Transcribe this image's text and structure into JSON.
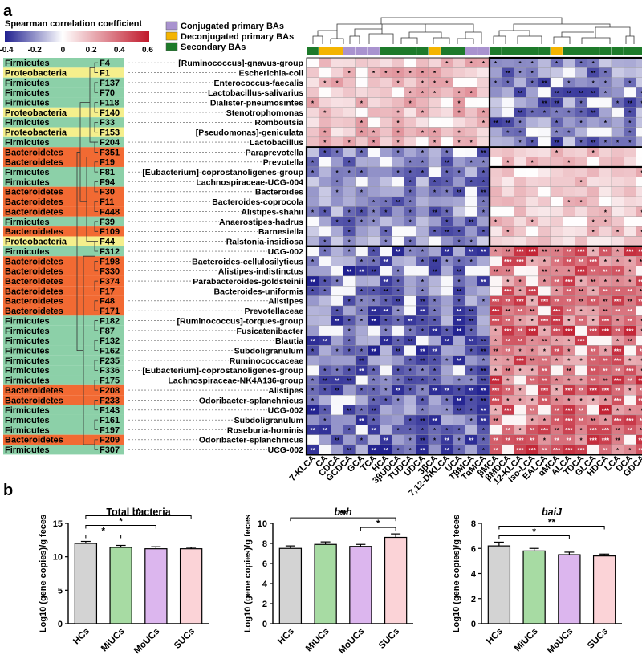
{
  "panel_a": {
    "label": "a",
    "colorbar": {
      "title": "Spearman correlation coefficient",
      "ticks": [
        "-0.4",
        "-0.2",
        "0",
        "0.2",
        "0.4",
        "0.6"
      ],
      "range": [
        -0.4,
        0.6
      ],
      "low_color": "#1f1f8f",
      "mid_color": "#ffffff",
      "high_color": "#c0182a"
    },
    "legend": [
      {
        "label": "Conjugated primary BAs",
        "color": "#a993cf"
      },
      {
        "label": "Deconjugated primary BAs",
        "color": "#f4b400"
      },
      {
        "label": "Secondary BAs",
        "color": "#1d7a2a"
      }
    ],
    "phylum_colors": {
      "Firmicutes": "#8cd0a8",
      "Proteobacteria": "#f5ef8c",
      "Bacteroidetes": "#f26a33"
    },
    "rows": [
      {
        "phylum": "Firmicutes",
        "id": "F4",
        "taxon": "[Ruminococcus]-gnavus-group"
      },
      {
        "phylum": "Proteobacteria",
        "id": "F1",
        "taxon": "Escherichia-coli"
      },
      {
        "phylum": "Firmicutes",
        "id": "F137",
        "taxon": "Enterococcus-faecalis"
      },
      {
        "phylum": "Firmicutes",
        "id": "F70",
        "taxon": "Lactobacillus-salivarius"
      },
      {
        "phylum": "Firmicutes",
        "id": "F118",
        "taxon": "Dialister-pneumosintes"
      },
      {
        "phylum": "Proteobacteria",
        "id": "F140",
        "taxon": "Stenotrophomonas"
      },
      {
        "phylum": "Firmicutes",
        "id": "F33",
        "taxon": "Romboutsia"
      },
      {
        "phylum": "Proteobacteria",
        "id": "F153",
        "taxon": "[Pseudomonas]-geniculata"
      },
      {
        "phylum": "Firmicutes",
        "id": "F204",
        "taxon": "Lactobacillus"
      },
      {
        "phylum": "Bacteroidetes",
        "id": "F351",
        "taxon": "Paraprevotella"
      },
      {
        "phylum": "Bacteroidetes",
        "id": "F19",
        "taxon": "Prevotella"
      },
      {
        "phylum": "Firmicutes",
        "id": "F81",
        "taxon": "[Eubacterium]-coprostanoligenes-group"
      },
      {
        "phylum": "Firmicutes",
        "id": "F94",
        "taxon": "Lachnospiraceae-UCG-004"
      },
      {
        "phylum": "Bacteroidetes",
        "id": "F30",
        "taxon": "Bacteroides"
      },
      {
        "phylum": "Bacteroidetes",
        "id": "F11",
        "taxon": "Bacteroides-coprocola"
      },
      {
        "phylum": "Bacteroidetes",
        "id": "F448",
        "taxon": "Alistipes-shahii"
      },
      {
        "phylum": "Firmicutes",
        "id": "F39",
        "taxon": "Anaerostipes-hadrus"
      },
      {
        "phylum": "Bacteroidetes",
        "id": "F109",
        "taxon": "Barnesiella"
      },
      {
        "phylum": "Proteobacteria",
        "id": "F44",
        "taxon": "Ralstonia-insidiosa"
      },
      {
        "phylum": "Firmicutes",
        "id": "F312",
        "taxon": "UCG-002"
      },
      {
        "phylum": "Bacteroidetes",
        "id": "F198",
        "taxon": "Bacteroides-cellulosilyticus"
      },
      {
        "phylum": "Bacteroidetes",
        "id": "F330",
        "taxon": "Alistipes-indistinctus"
      },
      {
        "phylum": "Bacteroidetes",
        "id": "F374",
        "taxon": "Parabacteroides-goldsteinii"
      },
      {
        "phylum": "Bacteroidetes",
        "id": "F17",
        "taxon": "Bacteroides-uniformis"
      },
      {
        "phylum": "Bacteroidetes",
        "id": "F48",
        "taxon": "Alistipes"
      },
      {
        "phylum": "Bacteroidetes",
        "id": "F171",
        "taxon": "Prevotellaceae"
      },
      {
        "phylum": "Firmicutes",
        "id": "F182",
        "taxon": "[Ruminococcus]-torques-group"
      },
      {
        "phylum": "Firmicutes",
        "id": "F87",
        "taxon": "Fusicatenibacter"
      },
      {
        "phylum": "Firmicutes",
        "id": "F132",
        "taxon": "Blautia"
      },
      {
        "phylum": "Firmicutes",
        "id": "F162",
        "taxon": "Subdoligranulum"
      },
      {
        "phylum": "Firmicutes",
        "id": "F235",
        "taxon": "Ruminococcaceae"
      },
      {
        "phylum": "Firmicutes",
        "id": "F336",
        "taxon": "[Eubacterium]-coprostanoligenes-group"
      },
      {
        "phylum": "Firmicutes",
        "id": "F175",
        "taxon": "Lachnospiraceae-NK4A136-group"
      },
      {
        "phylum": "Bacteroidetes",
        "id": "F208",
        "taxon": "Alistipes"
      },
      {
        "phylum": "Bacteroidetes",
        "id": "F233",
        "taxon": "Odoribacter-splanchnicus"
      },
      {
        "phylum": "Firmicutes",
        "id": "F143",
        "taxon": "UCG-002"
      },
      {
        "phylum": "Firmicutes",
        "id": "F161",
        "taxon": "Subdoligranulum"
      },
      {
        "phylum": "Firmicutes",
        "id": "F197",
        "taxon": "Roseburia-hominis"
      },
      {
        "phylum": "Bacteroidetes",
        "id": "F209",
        "taxon": "Odoribacter-splanchnicus"
      },
      {
        "phylum": "Firmicutes",
        "id": "F307",
        "taxon": "UCG-002"
      }
    ],
    "columns": [
      {
        "name": "7-KLCA",
        "type": "Secondary"
      },
      {
        "name": "CA",
        "type": "Deconjugated"
      },
      {
        "name": "CDCA",
        "type": "Deconjugated"
      },
      {
        "name": "GCDCA",
        "type": "Conjugated"
      },
      {
        "name": "GCA",
        "type": "Conjugated"
      },
      {
        "name": "TCA",
        "type": "Conjugated"
      },
      {
        "name": "HCA",
        "type": "Secondary"
      },
      {
        "name": "3βUDCA",
        "type": "Secondary"
      },
      {
        "name": "TUDCA",
        "type": "Secondary"
      },
      {
        "name": "UDCA",
        "type": "Secondary"
      },
      {
        "name": "3βCA",
        "type": "Deconjugated"
      },
      {
        "name": "7,12-DiKLCA",
        "type": "Secondary"
      },
      {
        "name": "UCA",
        "type": "Secondary"
      },
      {
        "name": "TβMCA",
        "type": "Conjugated"
      },
      {
        "name": "TαMCA",
        "type": "Conjugated"
      },
      {
        "name": "βMCA",
        "type": "Secondary"
      },
      {
        "name": "βMDCA",
        "type": "Secondary"
      },
      {
        "name": "12-KLCA",
        "type": "Secondary"
      },
      {
        "name": "Iso-LCA",
        "type": "Secondary"
      },
      {
        "name": "EALCA",
        "type": "Secondary"
      },
      {
        "name": "αMCA",
        "type": "Deconjugated"
      },
      {
        "name": "ALCA",
        "type": "Secondary"
      },
      {
        "name": "TDCA",
        "type": "Secondary"
      },
      {
        "name": "GLCA",
        "type": "Secondary"
      },
      {
        "name": "HDCA",
        "type": "Secondary"
      },
      {
        "name": "LCA",
        "type": "Secondary"
      },
      {
        "name": "DCA",
        "type": "Secondary"
      },
      {
        "name": "GDCA",
        "type": "Secondary"
      }
    ],
    "block_summary": [
      {
        "rows": "F4-F204",
        "columns": "7-KLCA..TαMCA",
        "direction": "positive"
      },
      {
        "rows": "F4-F204",
        "columns": "βMCA..GDCA",
        "direction": "negative"
      },
      {
        "rows": "F351-F44",
        "columns": "7-KLCA..TαMCA",
        "direction": "negative"
      },
      {
        "rows": "F351-F44",
        "columns": "βMCA..GDCA",
        "direction": "positive"
      },
      {
        "rows": "F312-F307",
        "columns": "7-KLCA..TαMCA",
        "direction": "negative"
      },
      {
        "rows": "F312-F307",
        "columns": "βMCA..GDCA",
        "direction": "strong positive"
      }
    ]
  },
  "panel_b": {
    "label": "b",
    "chart_data": [
      {
        "type": "bar",
        "title": "Total bacteria",
        "italic": false,
        "categories": [
          "HCs",
          "MiUCs",
          "MoUCs",
          "SUCs"
        ],
        "values": [
          12.0,
          11.4,
          11.2,
          11.2
        ],
        "errors": [
          0.3,
          0.3,
          0.3,
          0.2
        ],
        "ylabel": "Log10 (gene copies)/g feces",
        "ylim": [
          0,
          15
        ],
        "yticks": [
          "0",
          "5",
          "10",
          "15"
        ],
        "significance": [
          {
            "from": "HCs",
            "to": "MiUCs",
            "label": "*"
          },
          {
            "from": "HCs",
            "to": "MoUCs",
            "label": "*"
          },
          {
            "from": "HCs",
            "to": "SUCs",
            "label": "*"
          }
        ]
      },
      {
        "type": "bar",
        "title": "bsh",
        "italic": true,
        "categories": [
          "HCs",
          "MiUCs",
          "MoUCs",
          "SUCs"
        ],
        "values": [
          7.5,
          7.9,
          7.7,
          8.6
        ],
        "errors": [
          0.25,
          0.25,
          0.2,
          0.35
        ],
        "ylabel": "Log10 (gene copies)/g feces",
        "ylim": [
          0,
          10
        ],
        "yticks": [
          "0",
          "2",
          "4",
          "6",
          "8",
          "10"
        ],
        "significance": [
          {
            "from": "MoUCs",
            "to": "SUCs",
            "label": "*"
          },
          {
            "from": "HCs",
            "to": "SUCs",
            "label": "**"
          }
        ]
      },
      {
        "type": "bar",
        "title": "baiJ",
        "italic": true,
        "categories": [
          "HCs",
          "MiUCs",
          "MoUCs",
          "SUCs"
        ],
        "values": [
          6.2,
          5.8,
          5.5,
          5.4
        ],
        "errors": [
          0.3,
          0.2,
          0.2,
          0.15
        ],
        "ylabel": "Log10 (gene copies)/g feces",
        "ylim": [
          0,
          8
        ],
        "yticks": [
          "0",
          "2",
          "4",
          "6",
          "8"
        ],
        "significance": [
          {
            "from": "HCs",
            "to": "MoUCs",
            "label": "*"
          },
          {
            "from": "HCs",
            "to": "SUCs",
            "label": "**"
          }
        ]
      }
    ],
    "bar_colors": [
      "#d3d3d3",
      "#a7dba3",
      "#dcb6ee",
      "#fbd3d7"
    ]
  }
}
